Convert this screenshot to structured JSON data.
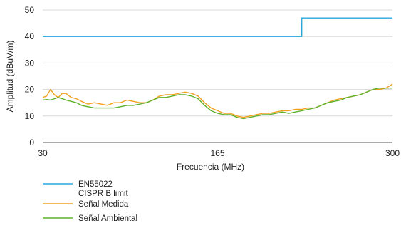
{
  "chart_data": {
    "type": "line",
    "title": "",
    "xlabel": "Frecuencia (MHz)",
    "ylabel": "Amplitud (dBuV/m)",
    "xlim": [
      30,
      300
    ],
    "ylim": [
      0,
      50
    ],
    "xticks": [
      30,
      165,
      300
    ],
    "yticks": [
      0,
      10,
      20,
      30,
      40,
      50
    ],
    "grid": "horizontal",
    "legend_position": "bottom-left",
    "series": [
      {
        "name": "EN55022\nCISPR B limit",
        "color": "#2aa6dd",
        "step": true,
        "x": [
          30,
          230,
          230,
          300
        ],
        "y": [
          40,
          40,
          47,
          47
        ]
      },
      {
        "name": "Señal Medida",
        "color": "#f0a020",
        "x": [
          30,
          33,
          36,
          39,
          42,
          45,
          48,
          52,
          56,
          60,
          65,
          70,
          75,
          80,
          85,
          90,
          95,
          100,
          105,
          110,
          115,
          120,
          125,
          130,
          135,
          140,
          145,
          150,
          155,
          160,
          165,
          170,
          175,
          180,
          185,
          190,
          195,
          200,
          205,
          210,
          215,
          220,
          225,
          230,
          235,
          240,
          245,
          250,
          255,
          260,
          265,
          270,
          275,
          280,
          285,
          290,
          295,
          300
        ],
        "y": [
          17,
          17.5,
          20,
          18,
          17,
          18.5,
          18.5,
          17,
          16.5,
          15.5,
          14.5,
          15,
          14.5,
          14,
          15,
          15,
          16,
          15.5,
          15,
          15,
          16,
          17.5,
          18,
          18,
          18.5,
          19,
          18.5,
          17.5,
          15,
          13,
          12,
          11,
          11,
          10,
          9.5,
          10,
          10.5,
          11,
          11,
          11.5,
          12,
          12,
          12.5,
          12.5,
          13,
          13,
          14,
          15,
          16,
          16.5,
          17,
          17.5,
          18,
          19,
          20,
          20,
          20.5,
          22
        ]
      },
      {
        "name": "Señal Ambiental",
        "color": "#5fb12a",
        "x": [
          30,
          33,
          36,
          39,
          42,
          45,
          48,
          52,
          56,
          60,
          65,
          70,
          75,
          80,
          85,
          90,
          95,
          100,
          105,
          110,
          115,
          120,
          125,
          130,
          135,
          140,
          145,
          150,
          155,
          160,
          165,
          170,
          175,
          180,
          185,
          190,
          195,
          200,
          205,
          210,
          215,
          220,
          225,
          230,
          235,
          240,
          245,
          250,
          255,
          260,
          265,
          270,
          275,
          280,
          285,
          290,
          295,
          300
        ],
        "y": [
          16,
          16.2,
          16,
          16.5,
          17,
          16.5,
          16,
          15.5,
          15,
          14,
          13.5,
          13,
          13,
          13,
          13,
          13.5,
          14,
          14,
          14.5,
          15,
          16,
          17,
          17,
          17.5,
          18,
          18,
          17.5,
          16.5,
          14,
          12,
          11,
          10.5,
          10.5,
          9.5,
          9,
          9.5,
          10,
          10.5,
          10.5,
          11,
          11.5,
          11,
          11.5,
          12,
          12.5,
          13,
          14,
          15,
          15.5,
          16,
          17,
          17.5,
          18,
          19,
          20,
          20.5,
          20.5,
          20.5
        ]
      }
    ]
  }
}
